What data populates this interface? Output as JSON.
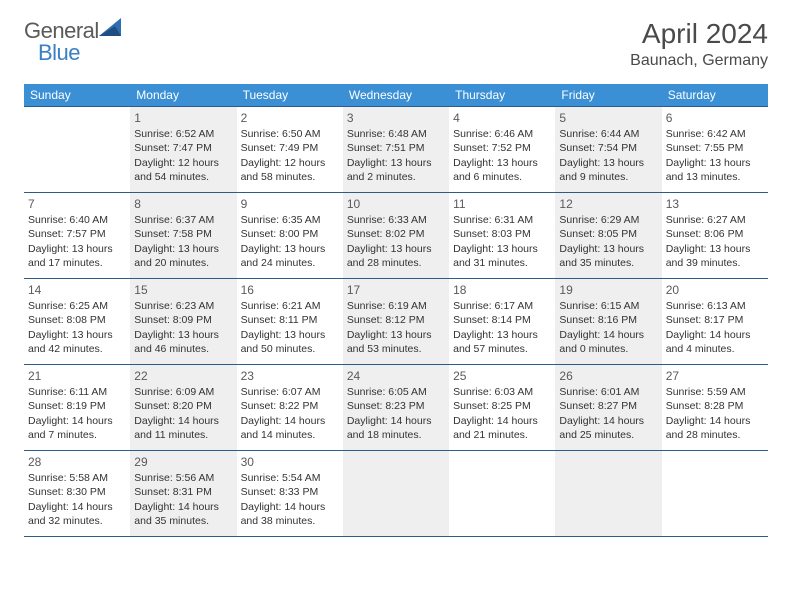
{
  "logo": {
    "text1": "General",
    "text2": "Blue"
  },
  "title": "April 2024",
  "location": "Baunach, Germany",
  "colors": {
    "header_bg": "#3b8fd4",
    "header_text": "#ffffff",
    "row_border": "#2f5b89",
    "alt_cell_bg": "#efefef",
    "logo_gray": "#5a5a5a",
    "logo_blue": "#3b7fc4"
  },
  "day_headers": [
    "Sunday",
    "Monday",
    "Tuesday",
    "Wednesday",
    "Thursday",
    "Friday",
    "Saturday"
  ],
  "weeks": [
    [
      null,
      {
        "n": "1",
        "sr": "Sunrise: 6:52 AM",
        "ss": "Sunset: 7:47 PM",
        "d1": "Daylight: 12 hours",
        "d2": "and 54 minutes."
      },
      {
        "n": "2",
        "sr": "Sunrise: 6:50 AM",
        "ss": "Sunset: 7:49 PM",
        "d1": "Daylight: 12 hours",
        "d2": "and 58 minutes."
      },
      {
        "n": "3",
        "sr": "Sunrise: 6:48 AM",
        "ss": "Sunset: 7:51 PM",
        "d1": "Daylight: 13 hours",
        "d2": "and 2 minutes."
      },
      {
        "n": "4",
        "sr": "Sunrise: 6:46 AM",
        "ss": "Sunset: 7:52 PM",
        "d1": "Daylight: 13 hours",
        "d2": "and 6 minutes."
      },
      {
        "n": "5",
        "sr": "Sunrise: 6:44 AM",
        "ss": "Sunset: 7:54 PM",
        "d1": "Daylight: 13 hours",
        "d2": "and 9 minutes."
      },
      {
        "n": "6",
        "sr": "Sunrise: 6:42 AM",
        "ss": "Sunset: 7:55 PM",
        "d1": "Daylight: 13 hours",
        "d2": "and 13 minutes."
      }
    ],
    [
      {
        "n": "7",
        "sr": "Sunrise: 6:40 AM",
        "ss": "Sunset: 7:57 PM",
        "d1": "Daylight: 13 hours",
        "d2": "and 17 minutes."
      },
      {
        "n": "8",
        "sr": "Sunrise: 6:37 AM",
        "ss": "Sunset: 7:58 PM",
        "d1": "Daylight: 13 hours",
        "d2": "and 20 minutes."
      },
      {
        "n": "9",
        "sr": "Sunrise: 6:35 AM",
        "ss": "Sunset: 8:00 PM",
        "d1": "Daylight: 13 hours",
        "d2": "and 24 minutes."
      },
      {
        "n": "10",
        "sr": "Sunrise: 6:33 AM",
        "ss": "Sunset: 8:02 PM",
        "d1": "Daylight: 13 hours",
        "d2": "and 28 minutes."
      },
      {
        "n": "11",
        "sr": "Sunrise: 6:31 AM",
        "ss": "Sunset: 8:03 PM",
        "d1": "Daylight: 13 hours",
        "d2": "and 31 minutes."
      },
      {
        "n": "12",
        "sr": "Sunrise: 6:29 AM",
        "ss": "Sunset: 8:05 PM",
        "d1": "Daylight: 13 hours",
        "d2": "and 35 minutes."
      },
      {
        "n": "13",
        "sr": "Sunrise: 6:27 AM",
        "ss": "Sunset: 8:06 PM",
        "d1": "Daylight: 13 hours",
        "d2": "and 39 minutes."
      }
    ],
    [
      {
        "n": "14",
        "sr": "Sunrise: 6:25 AM",
        "ss": "Sunset: 8:08 PM",
        "d1": "Daylight: 13 hours",
        "d2": "and 42 minutes."
      },
      {
        "n": "15",
        "sr": "Sunrise: 6:23 AM",
        "ss": "Sunset: 8:09 PM",
        "d1": "Daylight: 13 hours",
        "d2": "and 46 minutes."
      },
      {
        "n": "16",
        "sr": "Sunrise: 6:21 AM",
        "ss": "Sunset: 8:11 PM",
        "d1": "Daylight: 13 hours",
        "d2": "and 50 minutes."
      },
      {
        "n": "17",
        "sr": "Sunrise: 6:19 AM",
        "ss": "Sunset: 8:12 PM",
        "d1": "Daylight: 13 hours",
        "d2": "and 53 minutes."
      },
      {
        "n": "18",
        "sr": "Sunrise: 6:17 AM",
        "ss": "Sunset: 8:14 PM",
        "d1": "Daylight: 13 hours",
        "d2": "and 57 minutes."
      },
      {
        "n": "19",
        "sr": "Sunrise: 6:15 AM",
        "ss": "Sunset: 8:16 PM",
        "d1": "Daylight: 14 hours",
        "d2": "and 0 minutes."
      },
      {
        "n": "20",
        "sr": "Sunrise: 6:13 AM",
        "ss": "Sunset: 8:17 PM",
        "d1": "Daylight: 14 hours",
        "d2": "and 4 minutes."
      }
    ],
    [
      {
        "n": "21",
        "sr": "Sunrise: 6:11 AM",
        "ss": "Sunset: 8:19 PM",
        "d1": "Daylight: 14 hours",
        "d2": "and 7 minutes."
      },
      {
        "n": "22",
        "sr": "Sunrise: 6:09 AM",
        "ss": "Sunset: 8:20 PM",
        "d1": "Daylight: 14 hours",
        "d2": "and 11 minutes."
      },
      {
        "n": "23",
        "sr": "Sunrise: 6:07 AM",
        "ss": "Sunset: 8:22 PM",
        "d1": "Daylight: 14 hours",
        "d2": "and 14 minutes."
      },
      {
        "n": "24",
        "sr": "Sunrise: 6:05 AM",
        "ss": "Sunset: 8:23 PM",
        "d1": "Daylight: 14 hours",
        "d2": "and 18 minutes."
      },
      {
        "n": "25",
        "sr": "Sunrise: 6:03 AM",
        "ss": "Sunset: 8:25 PM",
        "d1": "Daylight: 14 hours",
        "d2": "and 21 minutes."
      },
      {
        "n": "26",
        "sr": "Sunrise: 6:01 AM",
        "ss": "Sunset: 8:27 PM",
        "d1": "Daylight: 14 hours",
        "d2": "and 25 minutes."
      },
      {
        "n": "27",
        "sr": "Sunrise: 5:59 AM",
        "ss": "Sunset: 8:28 PM",
        "d1": "Daylight: 14 hours",
        "d2": "and 28 minutes."
      }
    ],
    [
      {
        "n": "28",
        "sr": "Sunrise: 5:58 AM",
        "ss": "Sunset: 8:30 PM",
        "d1": "Daylight: 14 hours",
        "d2": "and 32 minutes."
      },
      {
        "n": "29",
        "sr": "Sunrise: 5:56 AM",
        "ss": "Sunset: 8:31 PM",
        "d1": "Daylight: 14 hours",
        "d2": "and 35 minutes."
      },
      {
        "n": "30",
        "sr": "Sunrise: 5:54 AM",
        "ss": "Sunset: 8:33 PM",
        "d1": "Daylight: 14 hours",
        "d2": "and 38 minutes."
      },
      null,
      null,
      null,
      null
    ]
  ]
}
